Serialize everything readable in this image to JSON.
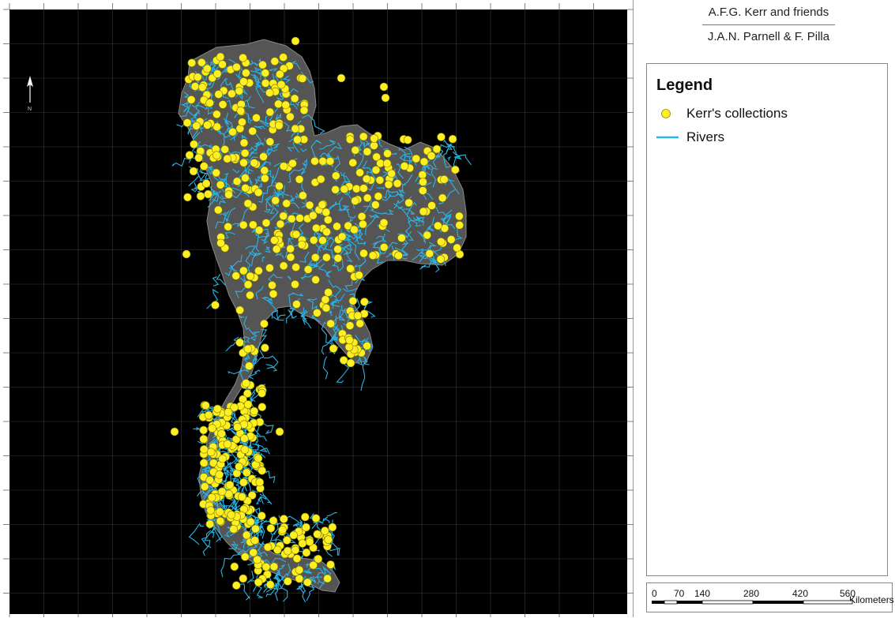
{
  "title": {
    "line1": "A.F.G. Kerr and friends",
    "line2": "J.A.N. Parnell & F. Pilla"
  },
  "legend": {
    "heading": "Legend",
    "items": [
      {
        "label": "Kerr's collections",
        "symbol": "circle",
        "color": "#ffee22"
      },
      {
        "label": "Rivers",
        "symbol": "line",
        "color": "#29b6e6"
      }
    ]
  },
  "north_arrow": {
    "label": "N"
  },
  "scale_bar": {
    "ticks": [
      "0",
      "70",
      "140",
      "280",
      "420",
      "560"
    ],
    "unit": "Kilometers"
  },
  "colors": {
    "background": "#000000",
    "land": "#5a5a5a",
    "rivers": "#29b6e6",
    "points": "#ffee22"
  }
}
